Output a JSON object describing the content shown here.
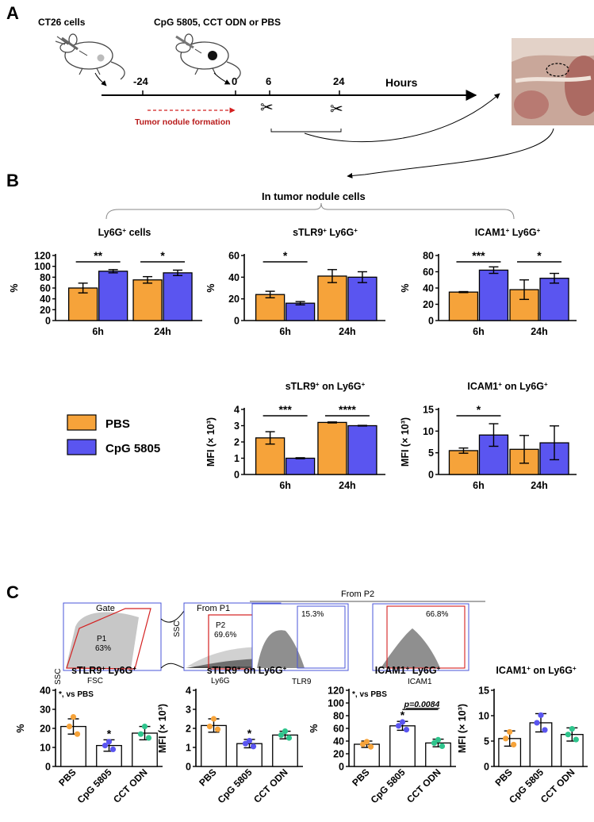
{
  "colors": {
    "pbs": "#F6A33A",
    "cpg": "#5A55F0",
    "cct": "#2EC48C",
    "red": "#D42020",
    "black": "#000000",
    "fill_open": "#FFFFFF"
  },
  "panelA": {
    "letter": "A",
    "cells_label": "CT26 cells",
    "treatment_label": "CpG 5805, CCT ODN or PBS",
    "timepoints": [
      "-24",
      "0",
      "6",
      "24"
    ],
    "hours_label": "Hours",
    "nodule_label": "Tumor nodule formation"
  },
  "panelB": {
    "letter": "B",
    "header": "In tumor nodule cells",
    "legend": [
      {
        "name": "PBS",
        "color_key": "pbs"
      },
      {
        "name": "CpG 5805",
        "color_key": "cpg"
      }
    ]
  },
  "panelC": {
    "letter": "C",
    "flow": {
      "gate_title": "Gate",
      "from_p1": "From P1",
      "from_p2": "From P2",
      "p1_name": "P1",
      "p1_pct": "63%",
      "p2_name": "P2",
      "p2_pct": "69.6%",
      "tlr9_pct": "15.3%",
      "icam1_pct": "66.8%",
      "ssc": "SSC",
      "fsc": "FSC",
      "ly6g": "Ly6G",
      "tlr9": "TLR9",
      "icam1": "ICAM1"
    }
  },
  "chart_data": [
    {
      "id": "b1",
      "type": "bar",
      "title": "Ly6G+ cells",
      "ylabel": "%",
      "ylim": [
        0,
        120
      ],
      "yticks": [
        0,
        20,
        40,
        60,
        80,
        100,
        120
      ],
      "categories": [
        "6h",
        "24h"
      ],
      "series": [
        {
          "name": "PBS",
          "values": [
            60,
            75
          ],
          "errors": [
            9,
            6
          ]
        },
        {
          "name": "CpG 5805",
          "values": [
            91,
            88
          ],
          "errors": [
            3,
            5
          ]
        }
      ],
      "annotations": [
        {
          "group": 0,
          "text": "**"
        },
        {
          "group": 1,
          "text": "*"
        }
      ]
    },
    {
      "id": "b2",
      "type": "bar",
      "title": "sTLR9+ Ly6G+",
      "ylabel": "%",
      "ylim": [
        0,
        60
      ],
      "yticks": [
        0,
        20,
        40,
        60
      ],
      "categories": [
        "6h",
        "24h"
      ],
      "series": [
        {
          "name": "PBS",
          "values": [
            24,
            41
          ],
          "errors": [
            3,
            6
          ]
        },
        {
          "name": "CpG 5805",
          "values": [
            16,
            40
          ],
          "errors": [
            1.5,
            5
          ]
        }
      ],
      "annotations": [
        {
          "group": 0,
          "text": "*"
        }
      ]
    },
    {
      "id": "b3",
      "type": "bar",
      "title": "ICAM1+ Ly6G+",
      "ylabel": "%",
      "ylim": [
        0,
        80
      ],
      "yticks": [
        0,
        20,
        40,
        60,
        80
      ],
      "categories": [
        "6h",
        "24h"
      ],
      "series": [
        {
          "name": "PBS",
          "values": [
            35,
            38
          ],
          "errors": [
            0.6,
            12
          ]
        },
        {
          "name": "CpG 5805",
          "values": [
            62,
            52
          ],
          "errors": [
            4,
            6
          ]
        }
      ],
      "annotations": [
        {
          "group": 0,
          "text": "***"
        },
        {
          "group": 1,
          "text": "*"
        }
      ]
    },
    {
      "id": "b4",
      "type": "bar",
      "title": "sTLR9+ on Ly6G+",
      "ylabel": "MFI (× 10³)",
      "ylim": [
        0,
        4
      ],
      "yticks": [
        0,
        1,
        2,
        3,
        4
      ],
      "categories": [
        "6h",
        "24h"
      ],
      "series": [
        {
          "name": "PBS",
          "values": [
            2.25,
            3.2
          ],
          "errors": [
            0.38,
            0.03
          ]
        },
        {
          "name": "CpG 5805",
          "values": [
            1.0,
            3.0
          ],
          "errors": [
            0.03,
            0.02
          ]
        }
      ],
      "annotations": [
        {
          "group": 0,
          "text": "***"
        },
        {
          "group": 1,
          "text": "****"
        }
      ]
    },
    {
      "id": "b5",
      "type": "bar",
      "title": "ICAM1+ on Ly6G+",
      "ylabel": "MFI (× 10³)",
      "ylim": [
        0,
        15
      ],
      "yticks": [
        0,
        5,
        10,
        15
      ],
      "categories": [
        "6h",
        "24h"
      ],
      "series": [
        {
          "name": "PBS",
          "values": [
            5.5,
            5.8
          ],
          "errors": [
            0.6,
            3.2
          ]
        },
        {
          "name": "CpG 5805",
          "values": [
            9.1,
            7.3
          ],
          "errors": [
            2.6,
            3.9
          ]
        }
      ],
      "annotations": [
        {
          "group": 0,
          "text": "*"
        }
      ]
    },
    {
      "id": "c1",
      "type": "bar",
      "title": "sTLR9+ Ly6G+",
      "ylabel": "%",
      "ylim": [
        0,
        40
      ],
      "yticks": [
        0,
        10,
        20,
        30,
        40
      ],
      "categories": [
        "PBS",
        "CpG 5805",
        "CCT ODN"
      ],
      "values": [
        21,
        11,
        17.5
      ],
      "errors": [
        4,
        3,
        3.5
      ],
      "points": [
        [
          26,
          21,
          17
        ],
        [
          13,
          11,
          9
        ],
        [
          21,
          17,
          15
        ]
      ],
      "note": "*, vs PBS",
      "stars": [
        {
          "index": 1,
          "text": "*"
        }
      ]
    },
    {
      "id": "c2",
      "type": "bar",
      "title": "sTLR9+ on Ly6G+",
      "ylabel": "MFI (× 10³)",
      "ylim": [
        0,
        4
      ],
      "yticks": [
        0,
        1,
        2,
        3,
        4
      ],
      "categories": [
        "PBS",
        "CpG 5805",
        "CCT ODN"
      ],
      "values": [
        2.15,
        1.2,
        1.65
      ],
      "errors": [
        0.35,
        0.22,
        0.2
      ],
      "points": [
        [
          2.5,
          2.1,
          1.95
        ],
        [
          1.35,
          1.2,
          1.05
        ],
        [
          1.85,
          1.65,
          1.5
        ]
      ],
      "stars": [
        {
          "index": 1,
          "text": "*"
        }
      ]
    },
    {
      "id": "c3",
      "type": "bar",
      "title": "ICAM1+ Ly6G+",
      "ylabel": "%",
      "ylim": [
        0,
        120
      ],
      "yticks": [
        0,
        20,
        40,
        60,
        80,
        100,
        120
      ],
      "categories": [
        "PBS",
        "CpG 5805",
        "CCT ODN"
      ],
      "values": [
        35,
        64,
        37
      ],
      "errors": [
        5,
        7,
        6
      ],
      "points": [
        [
          39,
          35,
          31
        ],
        [
          70,
          64,
          58
        ],
        [
          42,
          37,
          32
        ]
      ],
      "note": "*, vs PBS",
      "stars": [
        {
          "index": 1,
          "text": "*"
        }
      ],
      "comparison": {
        "from": 1,
        "to": 2,
        "text": "p=0.0084"
      }
    },
    {
      "id": "c4",
      "type": "bar",
      "title": "ICAM1+ on Ly6G+",
      "ylabel": "MFI (× 10³)",
      "ylim": [
        0,
        15
      ],
      "yticks": [
        0,
        5,
        10,
        15
      ],
      "categories": [
        "PBS",
        "CpG 5805",
        "CCT ODN"
      ],
      "values": [
        5.5,
        8.6,
        6.3
      ],
      "errors": [
        1.5,
        1.8,
        1.3
      ],
      "points": [
        [
          6.8,
          5.5,
          4.3
        ],
        [
          10.1,
          8.6,
          7.2
        ],
        [
          7.4,
          6.3,
          5.3
        ]
      ]
    }
  ]
}
